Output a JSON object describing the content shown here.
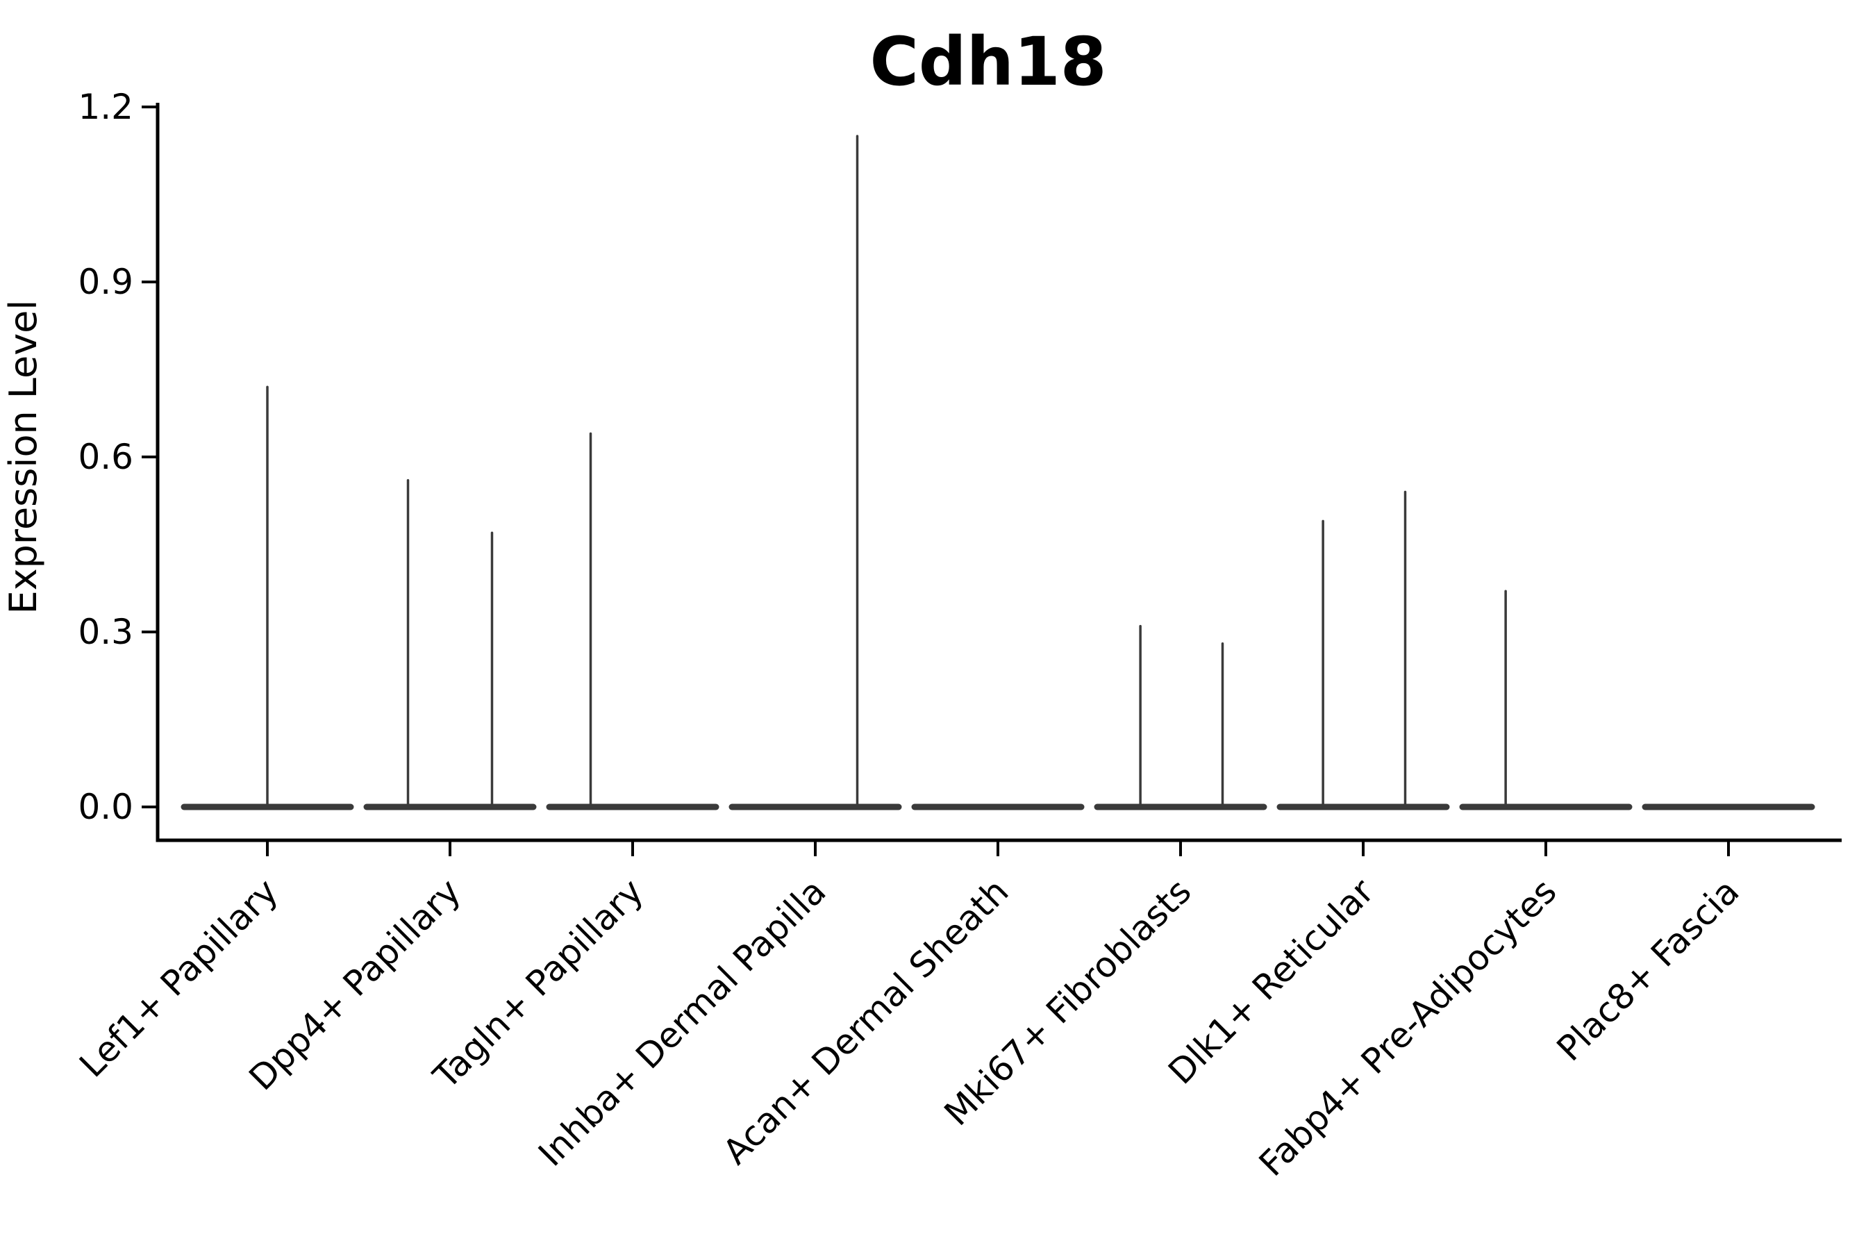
{
  "figure": {
    "title": "Cdh18",
    "ylabel": "Expression Level"
  },
  "chart_data": {
    "type": "violin",
    "title": "Cdh18",
    "xlabel": "",
    "ylabel": "Expression Level",
    "categories": [
      "Lef1+ Papillary",
      "Dpp4+ Papillary",
      "Tagln+ Papillary",
      "Inhba+ Dermal Papilla",
      "Acan+ Dermal Sheath",
      "Mki67+ Fibroblasts",
      "Dlk1+ Reticular",
      "Fabp4+ Pre-Adipocytes",
      "Plac8+ Fascia"
    ],
    "yticks": [
      0.0,
      0.3,
      0.6,
      0.9,
      1.2
    ],
    "ytick_labels": [
      "0.0",
      "0.3",
      "0.6",
      "0.9",
      "1.2"
    ],
    "ylim": [
      -0.06,
      1.21
    ],
    "grid": false,
    "legend": "none",
    "x_tick_label_rotation_deg": 45,
    "line_color": "#3a3a3a",
    "axis_color": "#000000",
    "violins": [
      {
        "category": "Lef1+ Papillary",
        "zero_body": true,
        "tails": [
          {
            "x_offset_frac": 0.0,
            "max_expression": 0.72
          }
        ]
      },
      {
        "category": "Dpp4+ Papillary",
        "zero_body": true,
        "tails": [
          {
            "x_offset_frac": -0.23,
            "max_expression": 0.56
          },
          {
            "x_offset_frac": 0.23,
            "max_expression": 0.47
          }
        ]
      },
      {
        "category": "Tagln+ Papillary",
        "zero_body": true,
        "tails": [
          {
            "x_offset_frac": -0.23,
            "max_expression": 0.64
          }
        ]
      },
      {
        "category": "Inhba+ Dermal Papilla",
        "zero_body": true,
        "tails": [
          {
            "x_offset_frac": 0.23,
            "max_expression": 1.15
          }
        ]
      },
      {
        "category": "Acan+ Dermal Sheath",
        "zero_body": true,
        "tails": []
      },
      {
        "category": "Mki67+ Fibroblasts",
        "zero_body": true,
        "tails": [
          {
            "x_offset_frac": -0.22,
            "max_expression": 0.31
          },
          {
            "x_offset_frac": 0.23,
            "max_expression": 0.28
          }
        ]
      },
      {
        "category": "Dlk1+ Reticular",
        "zero_body": true,
        "tails": [
          {
            "x_offset_frac": -0.22,
            "max_expression": 0.49
          },
          {
            "x_offset_frac": 0.23,
            "max_expression": 0.54
          }
        ]
      },
      {
        "category": "Fabp4+ Pre-Adipocytes",
        "zero_body": true,
        "tails": [
          {
            "x_offset_frac": -0.22,
            "max_expression": 0.37
          }
        ]
      },
      {
        "category": "Plac8+ Fascia",
        "zero_body": true,
        "tails": []
      }
    ]
  }
}
